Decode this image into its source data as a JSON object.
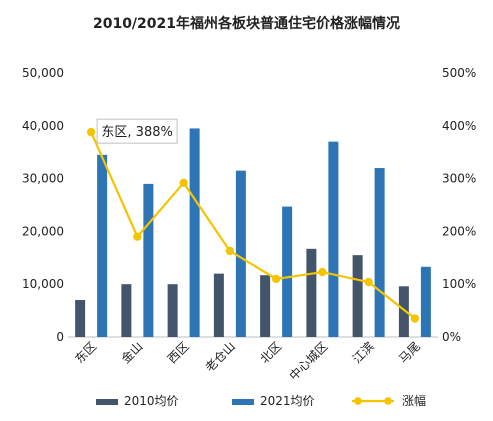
{
  "chart_data": {
    "type": "bar",
    "title": "2010/2021年福州各板块普通住宅价格涨幅情况",
    "categories": [
      "东区",
      "金山",
      "西区",
      "老仓山",
      "北区",
      "中心城区",
      "江滨",
      "马尾"
    ],
    "series": [
      {
        "name": "2010均价",
        "type": "bar",
        "axis": "left",
        "color": "#44546A",
        "values": [
          7000,
          10000,
          10000,
          12000,
          11700,
          16700,
          15500,
          9600
        ]
      },
      {
        "name": "2021均价",
        "type": "bar",
        "axis": "left",
        "color": "#2E75B6",
        "values": [
          34500,
          29000,
          39500,
          31500,
          24700,
          37000,
          32000,
          13300
        ]
      },
      {
        "name": "涨幅",
        "type": "line",
        "axis": "right",
        "color": "#F5C400",
        "values": [
          388,
          190,
          292,
          163,
          110,
          123,
          104,
          35
        ]
      }
    ],
    "y_left": {
      "min": 0,
      "max": 50000,
      "step": 10000,
      "tick_labels": [
        "0",
        "10,000",
        "20,000",
        "30,000",
        "40,000",
        "50,000"
      ]
    },
    "y_right": {
      "min": 0,
      "max": 500,
      "step": 100,
      "tick_labels": [
        "0%",
        "100%",
        "200%",
        "300%",
        "400%",
        "500%"
      ]
    },
    "annotation": {
      "text": "东区, 388%",
      "category_index": 0
    },
    "legend": {
      "position": "bottom",
      "entries": [
        "2010均价",
        "2021均价",
        "涨幅"
      ]
    },
    "grid": false
  }
}
